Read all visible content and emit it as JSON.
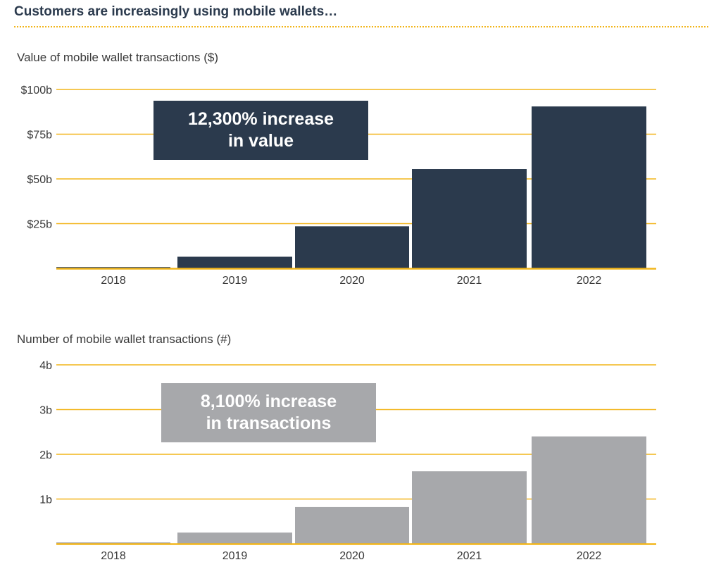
{
  "page": {
    "title": "Customers are increasingly using mobile wallets…"
  },
  "colors": {
    "accent_yellow": "#f2b51a",
    "navy": "#2b3a4d",
    "gray": "#a7a8ab"
  },
  "chart_data": [
    {
      "type": "bar",
      "title": "Value of mobile wallet transactions ($)",
      "categories": [
        "2018",
        "2019",
        "2020",
        "2021",
        "2022"
      ],
      "values": [
        0.7,
        6.5,
        23.5,
        55.5,
        90.5
      ],
      "unit": "billions of dollars",
      "ylim": [
        0,
        100
      ],
      "yticks": [
        {
          "value": 25,
          "label": "$25b"
        },
        {
          "value": 50,
          "label": "$50b"
        },
        {
          "value": 75,
          "label": "$75b"
        },
        {
          "value": 100,
          "label": "$100b"
        }
      ],
      "grid": true,
      "bar_color": "#2b3a4d",
      "callout": "12,300% increase\nin value",
      "callout_color": "#2b3a4d"
    },
    {
      "type": "bar",
      "title": "Number of mobile wallet transactions (#)",
      "categories": [
        "2018",
        "2019",
        "2020",
        "2021",
        "2022"
      ],
      "values": [
        0.03,
        0.25,
        0.82,
        1.62,
        2.4
      ],
      "unit": "billions of transactions",
      "ylim": [
        0,
        4
      ],
      "yticks": [
        {
          "value": 1,
          "label": "1b"
        },
        {
          "value": 2,
          "label": "2b"
        },
        {
          "value": 3,
          "label": "3b"
        },
        {
          "value": 4,
          "label": "4b"
        }
      ],
      "grid": true,
      "bar_color": "#a7a8ab",
      "callout": "8,100% increase\n in transactions",
      "callout_color": "#a7a8ab"
    }
  ]
}
